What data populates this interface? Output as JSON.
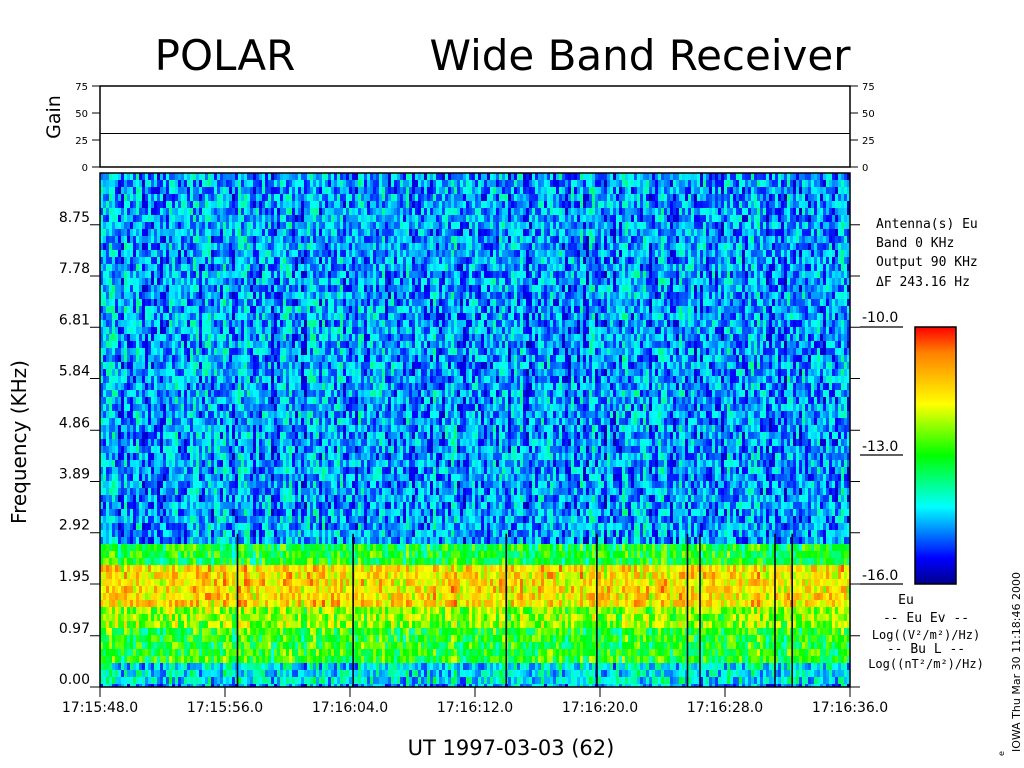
{
  "chart_data": {
    "type": "heatmap",
    "title_left": "POLAR",
    "title_right": "Wide Band Receiver",
    "gain_panel": {
      "ylabel": "Gain",
      "ticks": [
        "75",
        "50",
        "25",
        "0"
      ],
      "ylim": [
        0,
        75
      ],
      "gain_value": 31
    },
    "spectrogram": {
      "ylabel": "Frequency (KHz)",
      "xlabel": "UT 1997-03-03  (62)",
      "y_ticks": [
        "0.00",
        "0.97",
        "1.95",
        "2.92",
        "3.89",
        "4.86",
        "5.84",
        "6.81",
        "7.78",
        "8.75"
      ],
      "x_ticks": [
        "17:15:48.0",
        "17:15:56.0",
        "17:16:04.0",
        "17:16:12.0",
        "17:16:20.0",
        "17:16:28.0",
        "17:16:36.0"
      ],
      "ylim_khz": [
        0,
        9.73
      ],
      "xlim_seconds": [
        0,
        48
      ],
      "bands": [
        {
          "from_khz": 0.0,
          "to_khz": 0.5,
          "level": 0.3
        },
        {
          "from_khz": 0.5,
          "to_khz": 1.1,
          "level": 0.5
        },
        {
          "from_khz": 1.1,
          "to_khz": 1.5,
          "level": 0.6
        },
        {
          "from_khz": 1.5,
          "to_khz": 2.35,
          "level": 0.75
        },
        {
          "from_khz": 2.35,
          "to_khz": 2.72,
          "level": 0.48
        },
        {
          "from_khz": 2.72,
          "to_khz": 9.73,
          "level": 0.22
        }
      ],
      "dropouts_seconds": [
        8.8,
        16.2,
        26.0,
        31.8,
        37.6,
        38.4,
        43.2,
        44.3
      ]
    },
    "info": {
      "antenna": "Antenna(s) Eu",
      "band": "Band 0 KHz",
      "output": "Output 90 KHz",
      "delta_f": "ΔF   243.16 Hz"
    },
    "colorbar": {
      "ticks": [
        "-10.0",
        "-13.0",
        "-16.0"
      ],
      "range": [
        -16.0,
        -10.0
      ],
      "colors": [
        "#00008c",
        "#0000ff",
        "#0080ff",
        "#00ffff",
        "#00ff80",
        "#00ff00",
        "#80ff00",
        "#ffff00",
        "#ffc000",
        "#ff8000",
        "#ff0000"
      ]
    },
    "legend": {
      "line1": "Eu",
      "line2": "-- Eu  Ev --",
      "line3": "Log((V²/m²)/Hz)",
      "line4": "-- Bu  L  --",
      "line5": "Log((nT²/m²)/Hz)"
    },
    "footer": "IOWA Thu Mar 30 11:18:46 2000",
    "footer_mark": "e"
  }
}
